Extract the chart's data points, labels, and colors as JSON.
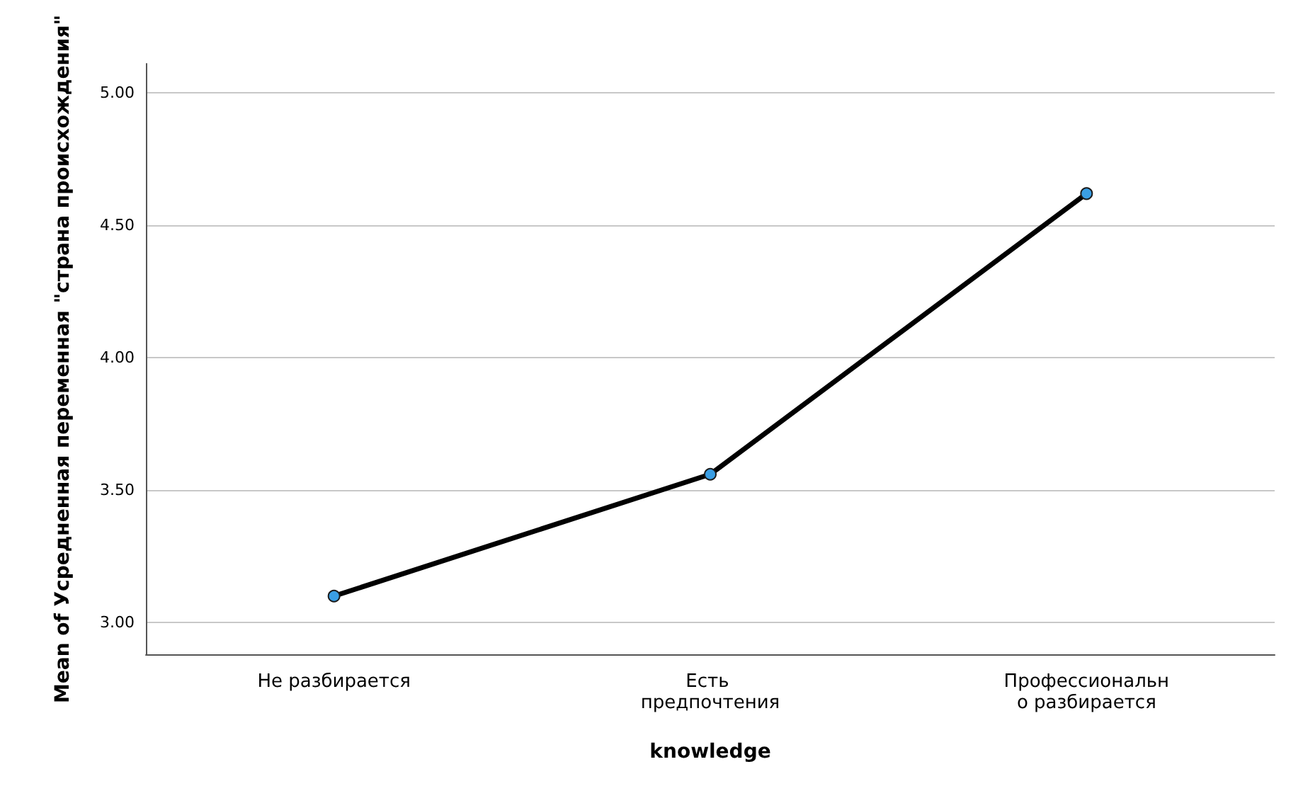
{
  "chart_data": {
    "type": "line",
    "xlabel": "knowledge",
    "ylabel": "Mean of Усредненная переменная \"страна происхождения\"",
    "categories": [
      "Не разбирается",
      "Есть предпочтения",
      "Профессионально разбирается"
    ],
    "series": [
      {
        "color": "#000000",
        "values": [
          3.1,
          3.56,
          4.62
        ]
      }
    ],
    "marker": "circle",
    "line_style": "solid",
    "ylim": [
      2.88,
      5.11
    ],
    "yticks": [
      {
        "value": 3,
        "label": "3.00"
      },
      {
        "value": 3.5,
        "label": "3.50"
      },
      {
        "value": 4,
        "label": "4.00"
      },
      {
        "value": 4.5,
        "label": "4.50"
      },
      {
        "value": 5,
        "label": "5.00"
      }
    ],
    "grid": "y"
  }
}
